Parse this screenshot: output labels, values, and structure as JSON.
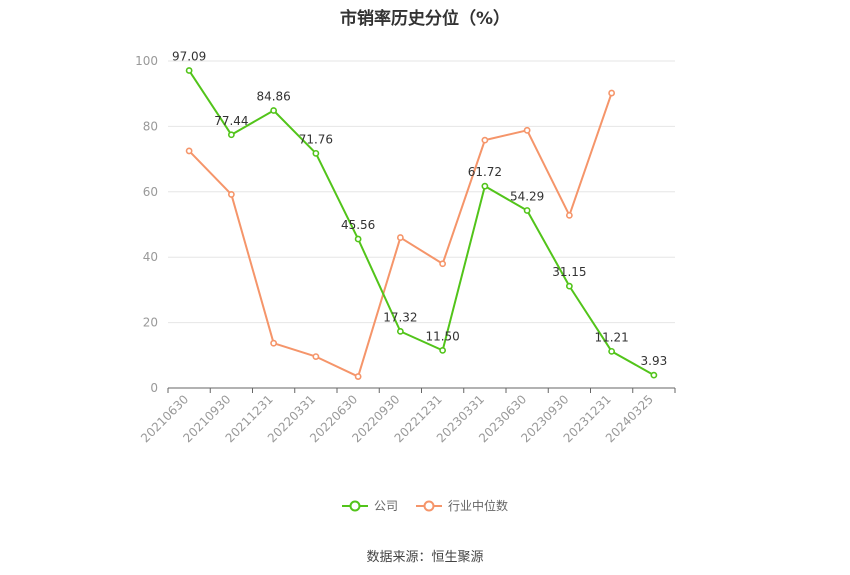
{
  "title": "市销率历史分位（%）",
  "source": "数据来源：恒生聚源",
  "colors": {
    "company": "#52c41a",
    "industry": "#f5956a",
    "grid": "#e6e6e6",
    "axis": "#999999",
    "label": "#333333"
  },
  "chart_data": {
    "type": "line",
    "title": "市销率历史分位（%）",
    "categories": [
      "20210630",
      "20210930",
      "20211231",
      "20220331",
      "20220630",
      "20220930",
      "20221231",
      "20230331",
      "20230630",
      "20230930",
      "20231231",
      "20240325"
    ],
    "ylim": [
      0,
      100
    ],
    "yticks": [
      0,
      20,
      40,
      60,
      80,
      100
    ],
    "grid": true,
    "legend_position": "bottom",
    "series": [
      {
        "name": "公司",
        "color": "#52c41a",
        "values": [
          97.09,
          77.44,
          84.86,
          71.76,
          45.56,
          17.32,
          11.5,
          61.72,
          54.29,
          31.15,
          11.21,
          3.93
        ],
        "labels": [
          "97.09",
          "77.44",
          "84.86",
          "71.76",
          "45.56",
          "17.32",
          "11.50",
          "61.72",
          "54.29",
          "31.15",
          "11.21",
          "3.93"
        ]
      },
      {
        "name": "行业中位数",
        "color": "#f5956a",
        "values": [
          72.5,
          59.2,
          13.7,
          9.6,
          3.5,
          46.0,
          38.0,
          75.8,
          78.8,
          52.8,
          90.2,
          null
        ]
      }
    ]
  }
}
